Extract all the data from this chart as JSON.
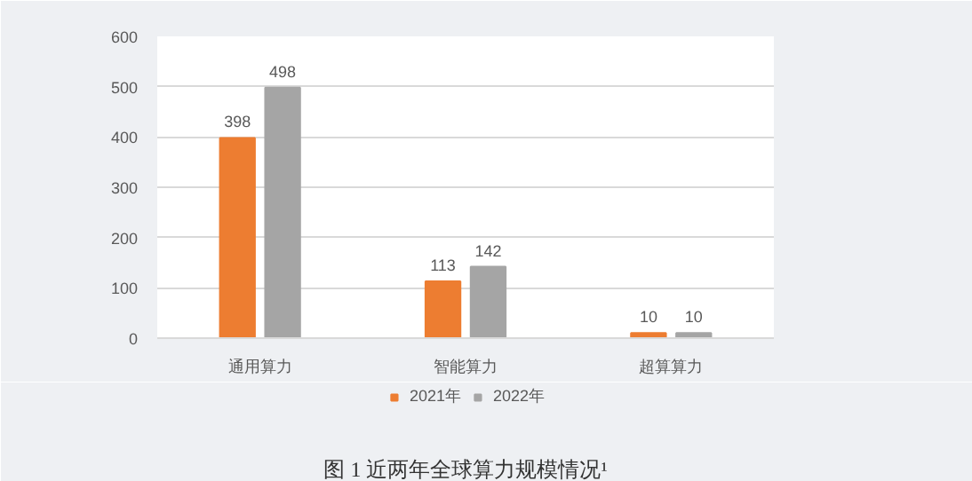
{
  "chart_data": {
    "type": "bar",
    "annotations": [
      "图 1 近两年全球算力规模情况¹"
    ],
    "categories": [
      "通用算力",
      "智能算力",
      "超算算力"
    ],
    "series": [
      {
        "name": "2021年",
        "color": "#ed7d31",
        "values": [
          398,
          113,
          10
        ]
      },
      {
        "name": "2022年",
        "color": "#a5a5a5",
        "values": [
          498,
          142,
          10
        ]
      }
    ],
    "ylim": [
      0,
      600
    ],
    "yticks": [
      0,
      100,
      200,
      300,
      400,
      500,
      600
    ],
    "grid": "y",
    "legend": "bottom",
    "data_labels": true
  }
}
